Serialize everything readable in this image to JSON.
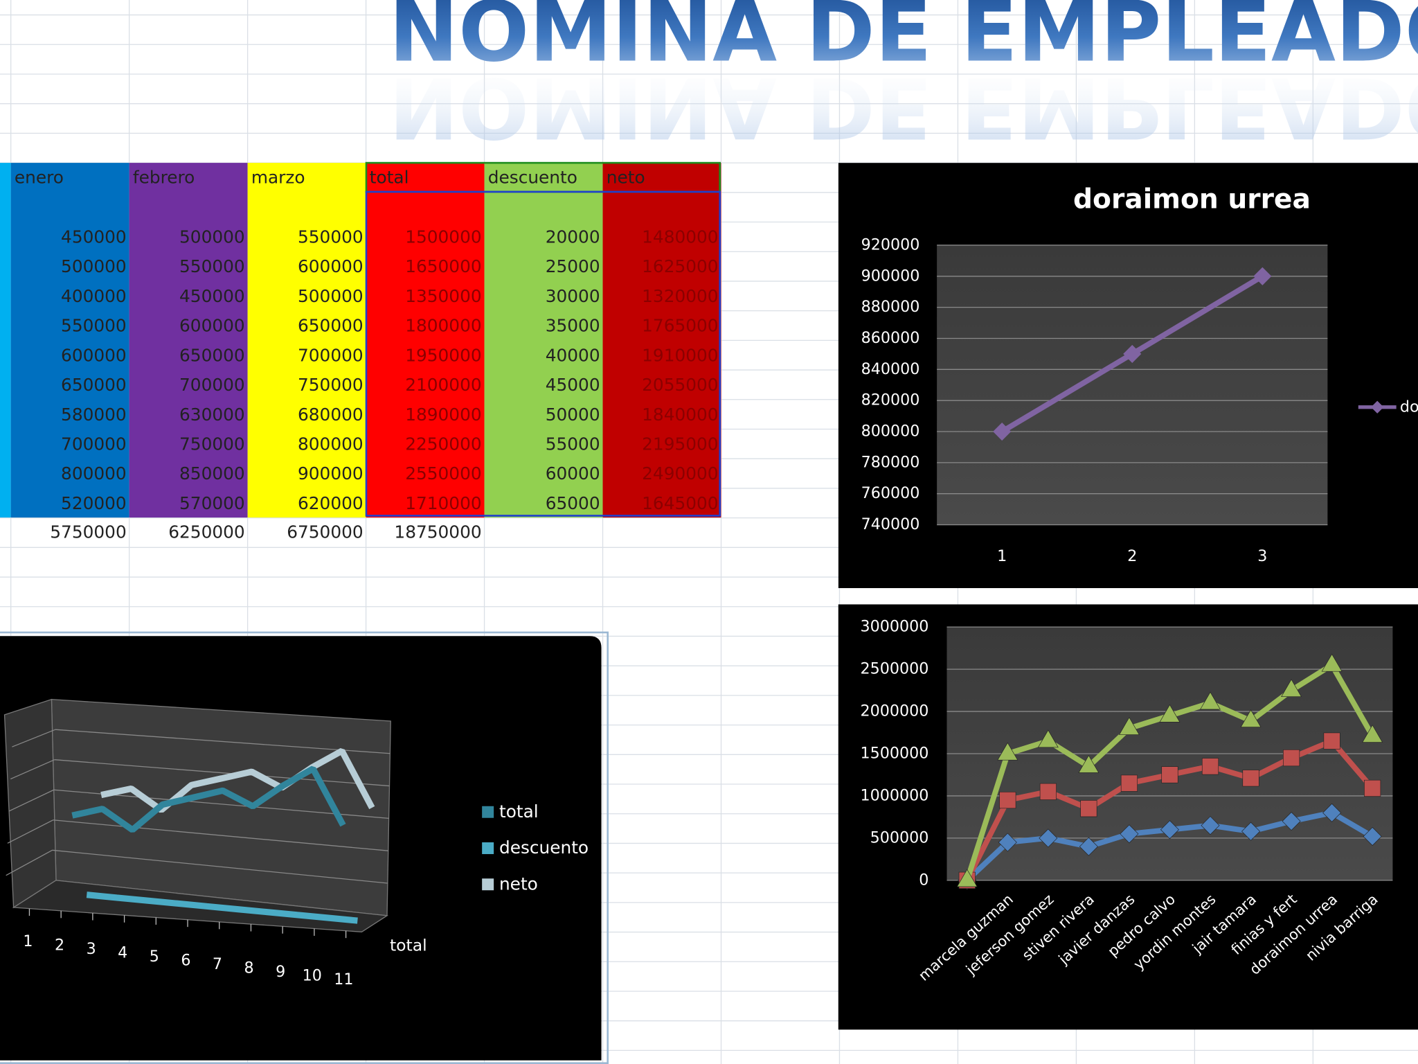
{
  "title": "NOMINA DE EMPLEADO",
  "table": {
    "header": [
      "enero",
      "febrero",
      "marzo",
      "total",
      "descuento",
      "neto"
    ],
    "rows": [
      [
        450000,
        500000,
        550000,
        1500000,
        20000,
        1480000
      ],
      [
        500000,
        550000,
        600000,
        1650000,
        25000,
        1625000
      ],
      [
        400000,
        450000,
        500000,
        1350000,
        30000,
        1320000
      ],
      [
        550000,
        600000,
        650000,
        1800000,
        35000,
        1765000
      ],
      [
        600000,
        650000,
        700000,
        1950000,
        40000,
        1910000
      ],
      [
        650000,
        700000,
        750000,
        2100000,
        45000,
        2055000
      ],
      [
        580000,
        630000,
        680000,
        1890000,
        50000,
        1840000
      ],
      [
        700000,
        750000,
        800000,
        2250000,
        55000,
        2195000
      ],
      [
        800000,
        850000,
        900000,
        2550000,
        60000,
        2490000
      ],
      [
        520000,
        570000,
        620000,
        1710000,
        65000,
        1645000
      ]
    ],
    "totals": [
      5750000,
      6250000,
      6750000,
      18750000
    ],
    "colors": [
      "#0070c0",
      "#7030a0",
      "#ffff00",
      "#ff0000",
      "#92d050",
      "#c00000"
    ]
  },
  "chart_data": [
    {
      "type": "line",
      "title": "doraimon urrea",
      "x": [
        1,
        2,
        3
      ],
      "xlim": [
        0.5,
        3.5
      ],
      "series": [
        {
          "name": "doraimon urrea",
          "color": "#8064a2",
          "values": [
            800000,
            850000,
            900000
          ]
        }
      ],
      "ylim": [
        740000,
        920000
      ],
      "yticks": [
        740000,
        760000,
        780000,
        800000,
        820000,
        840000,
        860000,
        880000,
        900000,
        920000
      ],
      "grid": true,
      "legend": "right"
    },
    {
      "type": "line",
      "stacked": true,
      "categories": [
        null,
        "marcela guzman",
        "jeferson gomez",
        "stiven rivera",
        "javier danzas",
        "pedro calvo",
        "yordin montes",
        "jair tamara",
        "finias y fert",
        "doraimon urrea",
        "nivia barriga"
      ],
      "series": [
        {
          "color": "#4f81bd",
          "marker": "diamond",
          "values": [
            0,
            450000,
            500000,
            400000,
            550000,
            600000,
            650000,
            580000,
            700000,
            800000,
            520000
          ]
        },
        {
          "color": "#c0504d",
          "marker": "square",
          "values": [
            0,
            500000,
            550000,
            450000,
            600000,
            650000,
            700000,
            630000,
            750000,
            850000,
            570000
          ]
        },
        {
          "color": "#9bbb59",
          "marker": "triangle",
          "values": [
            0,
            550000,
            600000,
            500000,
            650000,
            700000,
            750000,
            680000,
            800000,
            900000,
            620000
          ]
        }
      ],
      "ylim": [
        0,
        3000000
      ],
      "yticks": [
        0,
        500000,
        1000000,
        1500000,
        2000000,
        2500000,
        3000000
      ],
      "grid": true
    },
    {
      "type": "line3d",
      "x": [
        1,
        2,
        3,
        4,
        5,
        6,
        7,
        8,
        9,
        10,
        11
      ],
      "xlim": [
        0.5,
        11.5
      ],
      "ylim": [
        0,
        3000000
      ],
      "depth_label": "total",
      "legend": "right",
      "series": [
        {
          "name": "total",
          "color": "#31859c",
          "values": [
            null,
            1500000,
            1650000,
            1350000,
            1800000,
            1950000,
            2100000,
            1890000,
            2250000,
            2550000,
            1710000
          ]
        },
        {
          "name": "descuento",
          "color": "#4bacc6",
          "values": [
            null,
            20000,
            25000,
            30000,
            35000,
            40000,
            45000,
            50000,
            55000,
            60000,
            65000
          ]
        },
        {
          "name": "neto",
          "color": "#b7cdd6",
          "values": [
            null,
            1480000,
            1625000,
            1320000,
            1765000,
            1910000,
            2055000,
            1840000,
            2195000,
            2490000,
            1645000
          ]
        }
      ]
    }
  ]
}
